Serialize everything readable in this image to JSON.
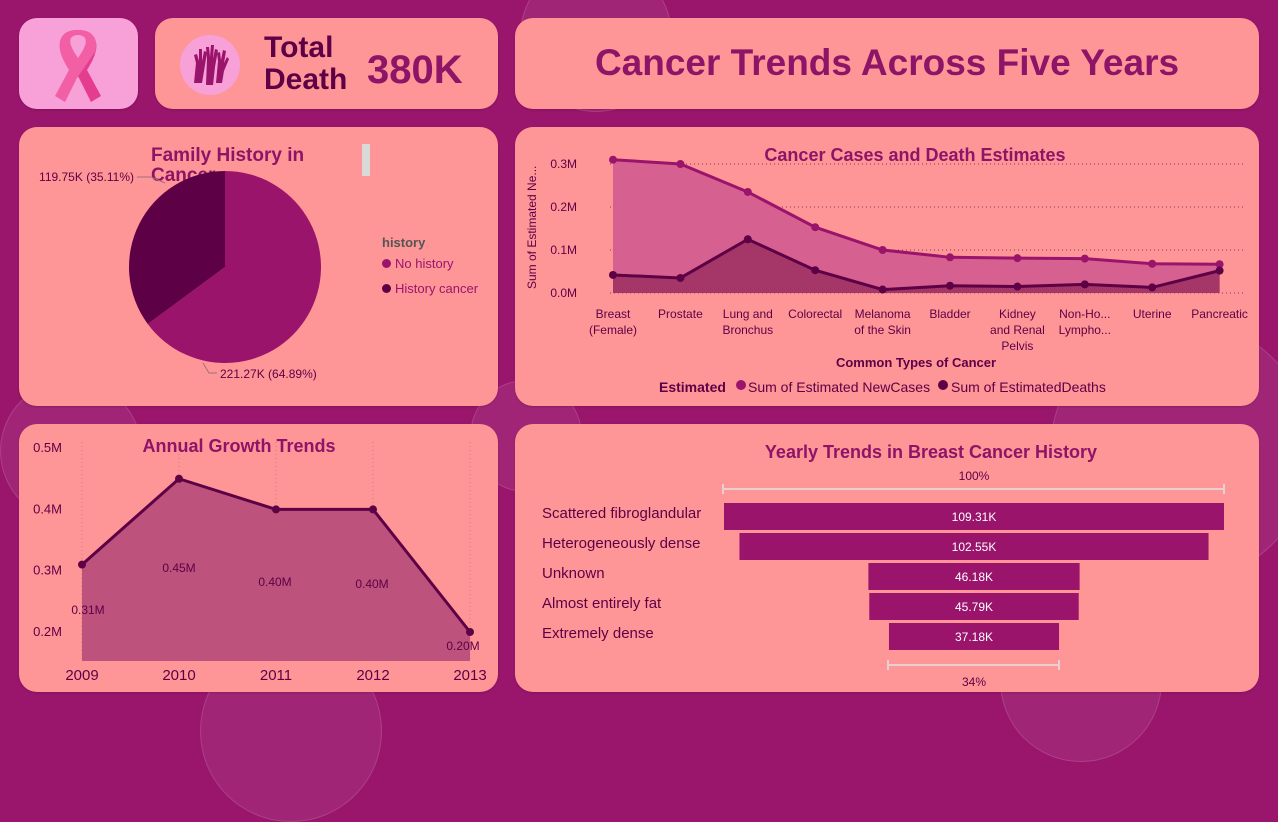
{
  "colors": {
    "background": "#9a156c",
    "card": "#fe9597",
    "primary": "#9a146c",
    "dark": "#5e0045",
    "title": "#8d1466"
  },
  "logo": {
    "icon": "pink-ribbon-icon"
  },
  "kpi": {
    "icon": "raised-hands-icon",
    "label_line1": "Total",
    "label_line2": "Death",
    "value": "380K"
  },
  "header": {
    "title": "Cancer Trends Across Five Years"
  },
  "family_history": {
    "title_line1": "Family History in",
    "title_line2": "Cancer",
    "legend_title": "history",
    "slice_labels": {
      "history_cancer": "119.75K (35.11%)",
      "no_history": "221.27K (64.89%)"
    },
    "legend_items": [
      "No history",
      "History cancer"
    ]
  },
  "cases_deaths": {
    "title": "Cancer Cases and Death Estimates",
    "legend_title": "Estimated",
    "legend_items": [
      "Sum of Estimated NewCases",
      "Sum of EstimatedDeaths"
    ]
  },
  "growth": {
    "title": "Annual Growth Trends"
  },
  "breast_history": {
    "title": "Yearly Trends in Breast Cancer History",
    "top_pct": "100%",
    "bottom_pct": "34%"
  },
  "chart_data": [
    {
      "type": "pie",
      "title": "Family History in Cancer",
      "legend_title": "history",
      "categories": [
        "No history",
        "History cancer"
      ],
      "values": [
        221.27,
        119.75
      ],
      "unit": "K",
      "percentages": [
        64.89,
        35.11
      ],
      "labels": [
        "221.27K (64.89%)",
        "119.75K (35.11%)"
      ]
    },
    {
      "type": "area",
      "title": "Cancer Cases and Death Estimates",
      "xlabel": "Common Types of Cancer",
      "ylabel": "Sum of Estimated Ne...",
      "categories": [
        "Breast (Female)",
        "Prostate",
        "Lung and Bronchus",
        "Colorectal",
        "Melanoma of the Skin",
        "Bladder",
        "Kidney and Renal Pelvis",
        "Non-Ho... Lympho...",
        "Uterine",
        "Pancreatic"
      ],
      "category_lines": [
        [
          "Breast",
          "(Female)"
        ],
        [
          "Prostate"
        ],
        [
          "Lung and",
          "Bronchus"
        ],
        [
          "Colorectal"
        ],
        [
          "Melanoma",
          "of the Skin"
        ],
        [
          "Bladder"
        ],
        [
          "Kidney",
          "and Renal",
          "Pelvis"
        ],
        [
          "Non-Ho...",
          "Lympho..."
        ],
        [
          "Uterine"
        ],
        [
          "Pancreatic"
        ]
      ],
      "series": [
        {
          "name": "Sum of Estimated NewCases",
          "values": [
            0.31,
            0.3,
            0.235,
            0.153,
            0.1,
            0.083,
            0.081,
            0.08,
            0.068,
            0.067
          ]
        },
        {
          "name": "Sum of EstimatedDeaths",
          "values": [
            0.042,
            0.035,
            0.125,
            0.053,
            0.008,
            0.017,
            0.015,
            0.02,
            0.013,
            0.052
          ]
        }
      ],
      "yticks": [
        "0.0M",
        "0.1M",
        "0.2M",
        "0.3M"
      ],
      "ylim": [
        0,
        0.32
      ],
      "legend_title": "Estimated"
    },
    {
      "type": "area",
      "title": "Annual Growth Trends",
      "x": [
        "2009",
        "2010",
        "2011",
        "2012",
        "2013"
      ],
      "values": [
        0.31,
        0.45,
        0.4,
        0.4,
        0.2
      ],
      "data_labels": [
        "0.31M",
        "0.45M",
        "0.40M",
        "0.40M",
        "0.20M"
      ],
      "yticks": [
        "0.2M",
        "0.3M",
        "0.4M",
        "0.5M"
      ],
      "ylim": [
        0.15,
        0.5
      ]
    },
    {
      "type": "bar",
      "subtype": "funnel",
      "title": "Yearly Trends in Breast Cancer History",
      "categories": [
        "Scattered fibroglandular",
        "Heterogeneously dense",
        "Unknown",
        "Almost entirely fat",
        "Extremely dense"
      ],
      "values": [
        109.31,
        102.55,
        46.18,
        45.79,
        37.18
      ],
      "labels": [
        "109.31K",
        "102.55K",
        "46.18K",
        "45.79K",
        "37.18K"
      ],
      "unit": "K",
      "top_pct": "100%",
      "bottom_pct": "34%"
    }
  ]
}
